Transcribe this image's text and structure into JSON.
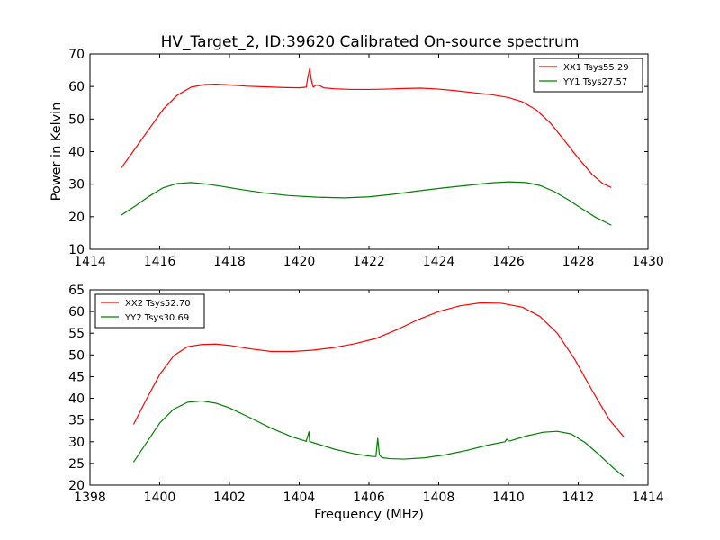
{
  "figure_title": "HV_Target_2, ID:39620 Calibrated On-source spectrum",
  "chart_data": [
    {
      "type": "line",
      "xlabel": "",
      "ylabel": "Power in Kelvin",
      "xlim": [
        1414,
        1430
      ],
      "ylim": [
        10,
        70
      ],
      "xticks": [
        1414,
        1416,
        1418,
        1420,
        1422,
        1424,
        1426,
        1428,
        1430
      ],
      "yticks": [
        10,
        20,
        30,
        40,
        50,
        60,
        70
      ],
      "legend_position": "top-right",
      "series": [
        {
          "name": "XX1 Tsys55.29",
          "color": "#ff0000",
          "x": [
            1414.9,
            1415.3,
            1415.7,
            1416.1,
            1416.5,
            1416.9,
            1417.3,
            1417.6,
            1418.0,
            1418.5,
            1419.0,
            1419.5,
            1420.0,
            1420.2,
            1420.25,
            1420.3,
            1420.35,
            1420.4,
            1420.5,
            1420.6,
            1420.7,
            1421.0,
            1421.5,
            1422.0,
            1422.5,
            1423.0,
            1423.5,
            1424.0,
            1424.5,
            1425.0,
            1425.5,
            1426.0,
            1426.4,
            1426.8,
            1427.2,
            1427.6,
            1428.0,
            1428.4,
            1428.7,
            1428.95
          ],
          "y": [
            35,
            41,
            47,
            53,
            57.3,
            59.8,
            60.6,
            60.7,
            60.5,
            60.1,
            59.9,
            59.7,
            59.6,
            59.8,
            63,
            65.5,
            62,
            59.8,
            60.5,
            60.2,
            59.6,
            59.3,
            59.1,
            59.1,
            59.2,
            59.4,
            59.5,
            59.2,
            58.7,
            58.1,
            57.5,
            56.6,
            55.3,
            52.8,
            48.8,
            43.5,
            38,
            33,
            30.2,
            29
          ]
        },
        {
          "name": "YY1 Tsys27.57",
          "color": "#008000",
          "x": [
            1414.9,
            1415.3,
            1415.7,
            1416.1,
            1416.5,
            1416.9,
            1417.3,
            1417.8,
            1418.3,
            1419.0,
            1419.7,
            1420.5,
            1421.3,
            1422.0,
            1422.7,
            1423.4,
            1424.1,
            1424.8,
            1425.5,
            1426.0,
            1426.5,
            1426.9,
            1427.3,
            1427.7,
            1428.1,
            1428.5,
            1428.95
          ],
          "y": [
            20.5,
            23.3,
            26.3,
            28.9,
            30.2,
            30.5,
            30.1,
            29.3,
            28.4,
            27.3,
            26.5,
            26.0,
            25.8,
            26.1,
            26.9,
            27.9,
            28.8,
            29.6,
            30.4,
            30.7,
            30.5,
            29.6,
            27.8,
            25.3,
            22.5,
            19.8,
            17.4
          ]
        }
      ]
    },
    {
      "type": "line",
      "xlabel": "Frequency (MHz)",
      "ylabel": "",
      "xlim": [
        1398,
        1414
      ],
      "ylim": [
        20,
        65
      ],
      "xticks": [
        1398,
        1400,
        1402,
        1404,
        1406,
        1408,
        1410,
        1412,
        1414
      ],
      "yticks": [
        20,
        25,
        30,
        35,
        40,
        45,
        50,
        55,
        60,
        65
      ],
      "legend_position": "top-left",
      "series": [
        {
          "name": "XX2 Tsys52.70",
          "color": "#ff0000",
          "x": [
            1399.25,
            1399.6,
            1400.0,
            1400.4,
            1400.8,
            1401.2,
            1401.6,
            1402.0,
            1402.6,
            1403.2,
            1403.8,
            1404.4,
            1405.0,
            1405.6,
            1406.2,
            1406.8,
            1407.4,
            1408.0,
            1408.6,
            1409.2,
            1409.8,
            1410.4,
            1410.9,
            1411.4,
            1411.9,
            1412.4,
            1412.9,
            1413.3
          ],
          "y": [
            34,
            39.5,
            45.5,
            49.8,
            51.9,
            52.4,
            52.5,
            52.2,
            51.4,
            50.8,
            50.8,
            51.1,
            51.7,
            52.6,
            53.8,
            55.8,
            58.1,
            60.0,
            61.3,
            62.0,
            61.9,
            61.0,
            58.9,
            55.0,
            49.0,
            41.8,
            35.0,
            31.2
          ]
        },
        {
          "name": "YY2 Tsys30.69",
          "color": "#008000",
          "x": [
            1399.25,
            1399.6,
            1400.0,
            1400.4,
            1400.8,
            1401.2,
            1401.6,
            1402.0,
            1402.6,
            1403.2,
            1403.8,
            1404.2,
            1404.28,
            1404.3,
            1404.32,
            1404.4,
            1405.0,
            1405.6,
            1406.1,
            1406.2,
            1406.25,
            1406.3,
            1406.35,
            1406.4,
            1406.6,
            1407.0,
            1407.6,
            1408.2,
            1408.8,
            1409.4,
            1409.9,
            1409.95,
            1410.0,
            1410.05,
            1410.5,
            1411.0,
            1411.4,
            1411.8,
            1412.2,
            1412.6,
            1413.0,
            1413.3
          ],
          "y": [
            25.3,
            29.5,
            34.3,
            37.5,
            39.1,
            39.4,
            38.9,
            37.8,
            35.5,
            33.1,
            31.1,
            30.1,
            32.3,
            30,
            30,
            29.8,
            28.3,
            27.2,
            26.6,
            26.6,
            30.8,
            27,
            26.5,
            26.3,
            26.1,
            26.0,
            26.3,
            27.0,
            28.0,
            29.2,
            30.0,
            30.6,
            30.2,
            30.2,
            31.3,
            32.2,
            32.4,
            31.8,
            29.8,
            27.0,
            24.0,
            22.0
          ]
        }
      ]
    }
  ]
}
